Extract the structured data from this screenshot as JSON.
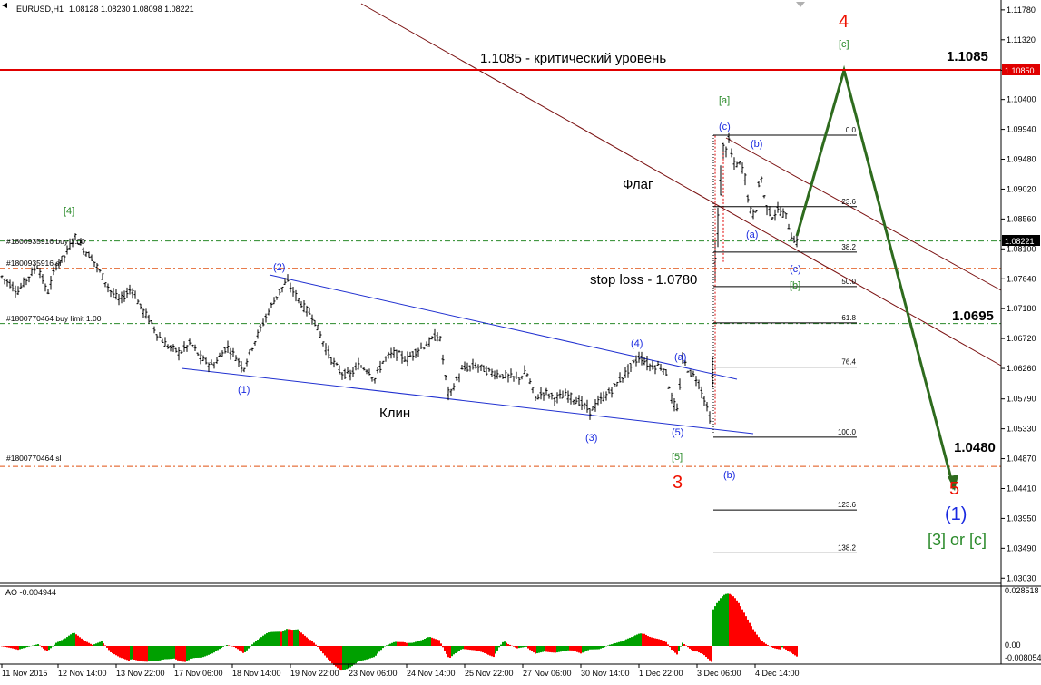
{
  "header": {
    "symbol": "EURUSD,H1",
    "ohlc": "1.08128 1.08230 1.08098 1.08221"
  },
  "indicator": {
    "label": "AO -0.004944",
    "ticks": [
      "0.028518",
      "0.00",
      "-0.008054"
    ]
  },
  "current_price": "1.08221",
  "level_price_label": "1.10850",
  "colors": {
    "background": "#ffffff",
    "candle": "#000000",
    "critical_line": "#e00000",
    "order_line": "#2a8a2a",
    "sl_line": "#e05010",
    "wedge": "#2030d0",
    "channel": "#7a1010",
    "forecast_arrow": "#2e6b1e",
    "wave_red": "#ee1100",
    "wave_blue": "#1a2ae0",
    "wave_green": "#2a8a2a",
    "ao_up": "#00a000",
    "ao_down": "#ff0000"
  },
  "orders": [
    "#1800935916 buy 1.00",
    "#1800935916 sl",
    "#1800770464 buy limit 1.00",
    "#1800770464 sl"
  ],
  "annotations": {
    "critical": "1.1085 - критический уровень",
    "flag": "Флаг",
    "wedge": "Клин",
    "stop_loss": "stop loss - 1.0780"
  },
  "price_callouts": [
    "1.1085",
    "1.0695",
    "1.0480"
  ],
  "fib_levels": [
    "0.0",
    "23.6",
    "38.2",
    "50.0",
    "61.8",
    "76.4",
    "100.0",
    "123.6",
    "138.2"
  ],
  "wave_labels": {
    "w4_red": "4",
    "c_green": "[c]",
    "a_green": "[a]",
    "c_blue_top": "(c)",
    "b_blue_top": "(b)",
    "a_blue_mid": "(a)",
    "c_blue_low": "(c)",
    "b_green": "[b]",
    "w4_green": "[4]",
    "w2": "(2)",
    "w1": "(1)",
    "w4": "(4)",
    "a_blue_right": "(a)",
    "w5": "(5)",
    "w3": "(3)",
    "w5_green": "[5]",
    "w3_red": "3",
    "b_blue_low": "(b)",
    "w5_red": "5",
    "w1_big": "(1)",
    "alt": "[3] or [c]"
  },
  "chart_data": {
    "type": "candlestick",
    "symbol": "EURUSD",
    "timeframe": "H1",
    "ylim": [
      1.0302,
      1.1182
    ],
    "y_ticks": [
      "1.11780",
      "1.11320",
      "1.10850",
      "1.10400",
      "1.09940",
      "1.09480",
      "1.09020",
      "1.08560",
      "1.08100",
      "1.07640",
      "1.07180",
      "1.06720",
      "1.06260",
      "1.05790",
      "1.05330",
      "1.04870",
      "1.04410",
      "1.03950",
      "1.03490",
      "1.03030"
    ],
    "x_ticks": [
      "11 Nov 2015",
      "12 Nov 14:00",
      "13 Nov 22:00",
      "17 Nov 06:00",
      "18 Nov 14:00",
      "19 Nov 22:00",
      "23 Nov 06:00",
      "24 Nov 14:00",
      "25 Nov 22:00",
      "27 Nov 06:00",
      "30 Nov 14:00",
      "1 Dec 22:00",
      "3 Dec 06:00",
      "4 Dec 14:00"
    ],
    "price_path": [
      [
        0,
        1.077
      ],
      [
        8,
        1.076
      ],
      [
        20,
        1.0745
      ],
      [
        30,
        1.0765
      ],
      [
        42,
        1.0785
      ],
      [
        52,
        1.074
      ],
      [
        62,
        1.0785
      ],
      [
        72,
        1.08
      ],
      [
        82,
        1.083
      ],
      [
        92,
        1.081
      ],
      [
        102,
        1.0795
      ],
      [
        112,
        1.077
      ],
      [
        122,
        1.0745
      ],
      [
        132,
        1.073
      ],
      [
        145,
        1.075
      ],
      [
        155,
        1.072
      ],
      [
        165,
        1.07
      ],
      [
        175,
        1.0675
      ],
      [
        185,
        1.066
      ],
      [
        198,
        1.065
      ],
      [
        210,
        1.0665
      ],
      [
        222,
        1.064
      ],
      [
        235,
        1.063
      ],
      [
        250,
        1.066
      ],
      [
        262,
        1.064
      ],
      [
        268,
        1.0625
      ],
      [
        278,
        1.066
      ],
      [
        288,
        1.069
      ],
      [
        298,
        1.072
      ],
      [
        308,
        1.0745
      ],
      [
        316,
        1.076
      ],
      [
        325,
        1.074
      ],
      [
        335,
        1.072
      ],
      [
        345,
        1.0705
      ],
      [
        355,
        1.067
      ],
      [
        365,
        1.064
      ],
      [
        375,
        1.062
      ],
      [
        385,
        1.0615
      ],
      [
        395,
        1.063
      ],
      [
        405,
        1.0625
      ],
      [
        413,
        1.061
      ],
      [
        423,
        1.064
      ],
      [
        435,
        1.065
      ],
      [
        448,
        1.064
      ],
      [
        460,
        1.0655
      ],
      [
        472,
        1.0665
      ],
      [
        484,
        1.068
      ],
      [
        490,
        1.062
      ],
      [
        495,
        1.058
      ],
      [
        500,
        1.06
      ],
      [
        510,
        1.0625
      ],
      [
        525,
        1.063
      ],
      [
        540,
        1.062
      ],
      [
        555,
        1.0615
      ],
      [
        570,
        1.061
      ],
      [
        580,
        1.062
      ],
      [
        590,
        1.058
      ],
      [
        600,
        1.059
      ],
      [
        612,
        1.058
      ],
      [
        625,
        1.0585
      ],
      [
        638,
        1.0575
      ],
      [
        650,
        1.056
      ],
      [
        660,
        1.0575
      ],
      [
        672,
        1.059
      ],
      [
        684,
        1.061
      ],
      [
        696,
        1.063
      ],
      [
        705,
        1.0645
      ],
      [
        715,
        1.063
      ],
      [
        725,
        1.063
      ],
      [
        733,
        1.0625
      ],
      [
        740,
        1.058
      ],
      [
        746,
        1.056
      ],
      [
        752,
        1.064
      ],
      [
        760,
        1.062
      ],
      [
        768,
        1.061
      ],
      [
        776,
        1.058
      ],
      [
        784,
        1.054
      ],
      [
        788,
        1.079
      ],
      [
        792,
        1.087
      ],
      [
        797,
        1.096
      ],
      [
        802,
        1.0985
      ],
      [
        808,
        1.094
      ],
      [
        815,
        1.094
      ],
      [
        820,
        1.093
      ],
      [
        826,
        1.087
      ],
      [
        832,
        1.086
      ],
      [
        838,
        1.093
      ],
      [
        843,
        1.088
      ],
      [
        850,
        1.086
      ],
      [
        858,
        1.087
      ],
      [
        866,
        1.086
      ],
      [
        872,
        1.083
      ],
      [
        878,
        1.082
      ]
    ],
    "orders": [
      {
        "label": "#1800935916 buy 1.00",
        "price": 1.08221,
        "style": "dash-dot",
        "color": "#2a8a2a"
      },
      {
        "label": "#1800935916 sl",
        "price": 1.078,
        "style": "dash-dot",
        "color": "#e05010"
      },
      {
        "label": "#1800770464 buy limit 1.00",
        "price": 1.0695,
        "style": "dash-dot",
        "color": "#2a8a2a"
      },
      {
        "label": "#1800770464 sl",
        "price": 1.0475,
        "style": "dash-dot",
        "color": "#e05010"
      }
    ],
    "critical_level": {
      "price": 1.1085,
      "label": "1.1085 - критический уровень"
    },
    "fibonacci": [
      {
        "level": "0.0",
        "price": 1.0985
      },
      {
        "level": "23.6",
        "price": 1.0875
      },
      {
        "level": "38.2",
        "price": 1.0805
      },
      {
        "level": "50.0",
        "price": 1.0752
      },
      {
        "level": "61.8",
        "price": 1.0696
      },
      {
        "level": "76.4",
        "price": 1.0628
      },
      {
        "level": "100.0",
        "price": 1.052
      },
      {
        "level": "123.6",
        "price": 1.0408
      },
      {
        "level": "138.2",
        "price": 1.0342
      }
    ],
    "forecast_path": [
      [
        1.083
      ],
      [
        1.1085
      ],
      [
        1.044
      ]
    ],
    "ao": {
      "last": -0.004944,
      "range": [
        -0.008054,
        0.028518
      ]
    }
  }
}
